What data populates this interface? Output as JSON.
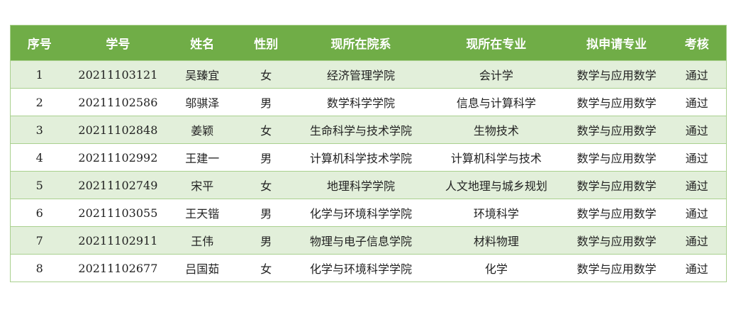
{
  "headers": [
    "序号",
    "学号",
    "姓名",
    "性别",
    "现所在院系",
    "现所在专业",
    "拟申请专业",
    "考核"
  ],
  "rows": [
    [
      "1",
      "20211103121",
      "吴臻宜",
      "女",
      "经济管理学院",
      "会计学",
      "数学与应用数学",
      "通过"
    ],
    [
      "2",
      "20211102586",
      "邬骐泽",
      "男",
      "数学科学学院",
      "信息与计算科学",
      "数学与应用数学",
      "通过"
    ],
    [
      "3",
      "20211102848",
      "姜颖",
      "女",
      "生命科学与技术学院",
      "生物技术",
      "数学与应用数学",
      "通过"
    ],
    [
      "4",
      "20211102992",
      "王建一",
      "男",
      "计算机科学技术学院",
      "计算机科学与技术",
      "数学与应用数学",
      "通过"
    ],
    [
      "5",
      "20211102749",
      "宋平",
      "女",
      "地理科学学院",
      "人文地理与城乡规划",
      "数学与应用数学",
      "通过"
    ],
    [
      "6",
      "20211103055",
      "王天锴",
      "男",
      "化学与环境科学学院",
      "环境科学",
      "数学与应用数学",
      "通过"
    ],
    [
      "7",
      "20211102911",
      "王伟",
      "男",
      "物理与电子信息学院",
      "材料物理",
      "数学与应用数学",
      "通过"
    ],
    [
      "8",
      "20211102677",
      "吕国茹",
      "女",
      "化学与环境科学学院",
      "化学",
      "数学与应用数学",
      "通过"
    ]
  ],
  "colors": {
    "header": "#70ad47",
    "band": "#e2efda",
    "border": "#a9d08e"
  }
}
